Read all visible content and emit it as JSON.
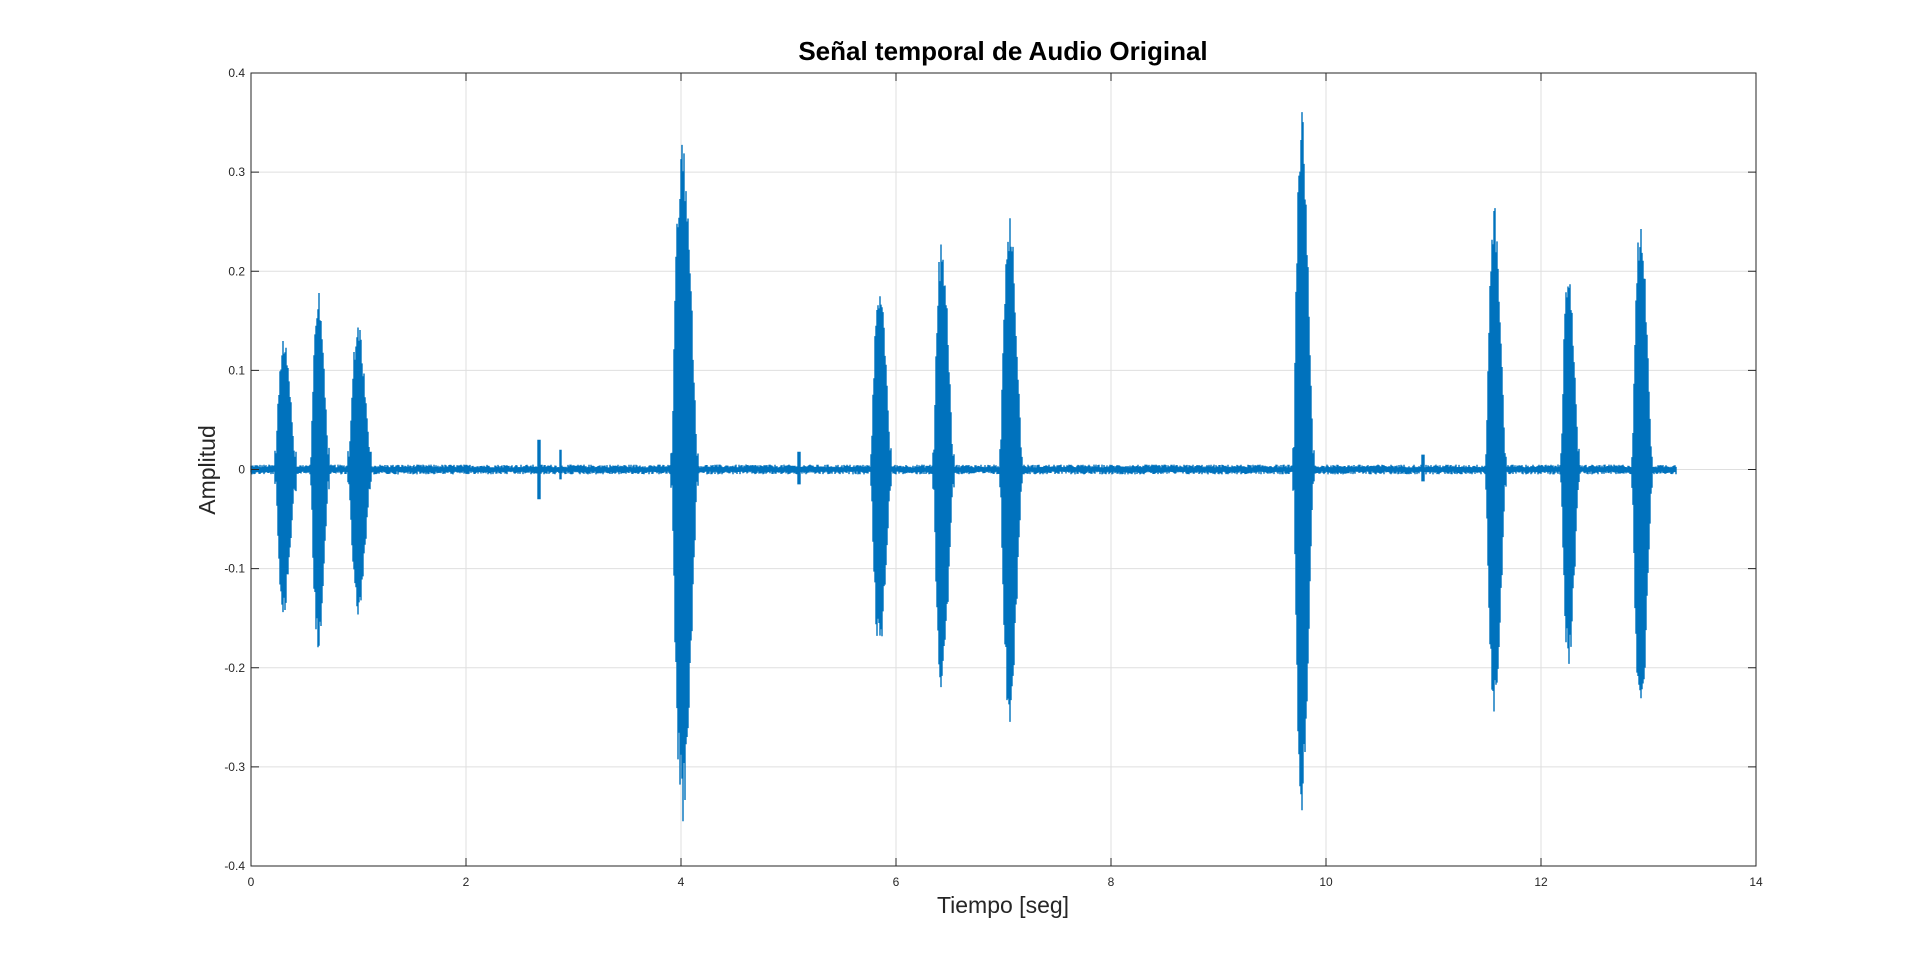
{
  "chart_data": {
    "type": "line",
    "title": "Señal temporal de Audio Original",
    "xlabel": "Tiempo [seg]",
    "ylabel": "Amplitud",
    "xlim": [
      0,
      14
    ],
    "ylim": [
      -0.4,
      0.4
    ],
    "xticks": [
      0,
      2,
      4,
      6,
      8,
      10,
      12,
      14
    ],
    "yticks": [
      -0.4,
      -0.3,
      -0.2,
      -0.1,
      0,
      0.1,
      0.2,
      0.3,
      0.4
    ],
    "xtick_labels": [
      "0",
      "2",
      "4",
      "6",
      "8",
      "10",
      "12",
      "14"
    ],
    "ytick_labels": [
      "-0.4",
      "-0.3",
      "-0.2",
      "-0.1",
      "0",
      "0.1",
      "0.2",
      "0.3",
      "0.4"
    ],
    "grid": true,
    "series_color": "#0072BD",
    "signal_end": 13.25,
    "bursts": [
      {
        "center": 0.31,
        "width": 0.1,
        "max": 0.14,
        "min": -0.15
      },
      {
        "center": 0.63,
        "width": 0.09,
        "max": 0.185,
        "min": -0.185
      },
      {
        "center": 1.0,
        "width": 0.11,
        "max": 0.15,
        "min": -0.15
      },
      {
        "center": 4.02,
        "width": 0.13,
        "max": 0.345,
        "min": -0.36
      },
      {
        "center": 5.85,
        "width": 0.1,
        "max": 0.195,
        "min": -0.19
      },
      {
        "center": 6.43,
        "width": 0.1,
        "max": 0.24,
        "min": -0.23
      },
      {
        "center": 7.06,
        "width": 0.11,
        "max": 0.265,
        "min": -0.255
      },
      {
        "center": 9.78,
        "width": 0.1,
        "max": 0.37,
        "min": -0.355
      },
      {
        "center": 11.57,
        "width": 0.1,
        "max": 0.265,
        "min": -0.25
      },
      {
        "center": 12.26,
        "width": 0.09,
        "max": 0.21,
        "min": -0.205
      },
      {
        "center": 12.93,
        "width": 0.1,
        "max": 0.265,
        "min": -0.27
      }
    ],
    "clicks": [
      {
        "x": 2.68,
        "max": 0.03,
        "min": -0.03
      },
      {
        "x": 2.88,
        "max": 0.02,
        "min": -0.01
      },
      {
        "x": 5.1,
        "max": 0.018,
        "min": -0.015
      },
      {
        "x": 10.9,
        "max": 0.015,
        "min": -0.012
      }
    ]
  }
}
